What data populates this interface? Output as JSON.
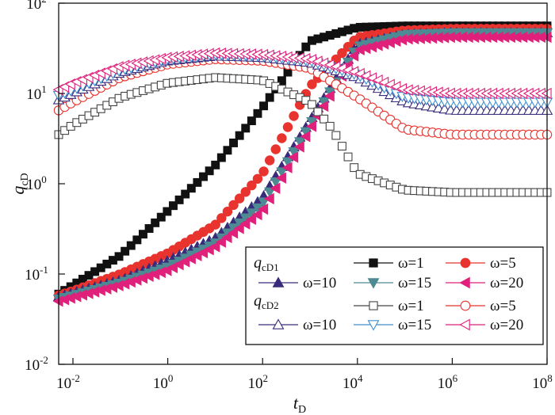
{
  "chart_data": {
    "type": "scatter",
    "title": "",
    "xlabel": "t",
    "xlabel_sub": "D",
    "ylabel": "q",
    "ylabel_sub": "cD",
    "x_scale": "log",
    "y_scale": "log",
    "xlim": [
      0.005,
      100000000
    ],
    "ylim": [
      0.01,
      100
    ],
    "grid": false,
    "legend_position": "bottom-right",
    "x_ticks": [
      {
        "value": 0.01,
        "base": "10",
        "exp": "-2"
      },
      {
        "value": 1,
        "base": "10",
        "exp": "0"
      },
      {
        "value": 100,
        "base": "10",
        "exp": "2"
      },
      {
        "value": 10000,
        "base": "10",
        "exp": "4"
      },
      {
        "value": 1000000,
        "base": "10",
        "exp": "6"
      },
      {
        "value": 100000000,
        "base": "10",
        "exp": "8"
      }
    ],
    "y_ticks": [
      {
        "value": 0.01,
        "base": "10",
        "exp": "-2"
      },
      {
        "value": 0.1,
        "base": "10",
        "exp": "-1"
      },
      {
        "value": 1,
        "base": "10",
        "exp": "0"
      },
      {
        "value": 10,
        "base": "10",
        "exp": "1"
      },
      {
        "value": 100,
        "base": "10",
        "exp": "2"
      }
    ],
    "legend_groups": [
      {
        "label": "q",
        "label_sub": "cD1"
      },
      {
        "label": "q",
        "label_sub": "cD2"
      }
    ],
    "series": [
      {
        "name": "ω=1",
        "group": 0,
        "marker": "square",
        "filled": true,
        "color": "#111111",
        "x": [
          0.005,
          0.01,
          0.1,
          1,
          10,
          100,
          1000,
          10000,
          100000,
          1000000,
          100000000
        ],
        "y": [
          0.06,
          0.075,
          0.16,
          0.5,
          1.6,
          7,
          38,
          54,
          56,
          56,
          56
        ]
      },
      {
        "name": "ω=5",
        "group": 0,
        "marker": "circle",
        "filled": true,
        "color": "#e8332e",
        "x": [
          0.005,
          0.01,
          0.1,
          1,
          10,
          100,
          1000,
          10000,
          100000,
          1000000,
          100000000
        ],
        "y": [
          0.058,
          0.065,
          0.1,
          0.17,
          0.35,
          1.3,
          12,
          42,
          50,
          52,
          52
        ]
      },
      {
        "name": "ω=10",
        "group": 0,
        "marker": "triangle-up",
        "filled": true,
        "color": "#3a2a7a",
        "x": [
          0.005,
          0.01,
          0.1,
          1,
          10,
          100,
          1000,
          10000,
          100000,
          1000000,
          100000000
        ],
        "y": [
          0.056,
          0.062,
          0.085,
          0.14,
          0.25,
          0.7,
          5,
          35,
          45,
          47,
          47
        ]
      },
      {
        "name": "ω=15",
        "group": 0,
        "marker": "triangle-down",
        "filled": true,
        "color": "#4e8a93",
        "x": [
          0.005,
          0.01,
          0.1,
          1,
          10,
          100,
          1000,
          10000,
          100000,
          1000000,
          100000000
        ],
        "y": [
          0.053,
          0.058,
          0.08,
          0.12,
          0.22,
          0.6,
          4.5,
          33,
          45,
          47,
          47
        ]
      },
      {
        "name": "ω=20",
        "group": 0,
        "marker": "triangle-left",
        "filled": true,
        "color": "#e0207a",
        "x": [
          0.005,
          0.01,
          0.1,
          1,
          10,
          100,
          1000,
          10000,
          100000,
          1000000,
          100000000
        ],
        "y": [
          0.05,
          0.055,
          0.075,
          0.11,
          0.2,
          0.5,
          4,
          30,
          40,
          42,
          42
        ]
      },
      {
        "name": "ω=1",
        "group": 1,
        "marker": "square",
        "filled": false,
        "color": "#444444",
        "x": [
          0.005,
          0.01,
          0.1,
          1,
          10,
          100,
          1000,
          3000,
          10000,
          100000,
          1000000,
          100000000
        ],
        "y": [
          3.5,
          4.5,
          9,
          13,
          15,
          14,
          8,
          4,
          1.3,
          0.85,
          0.8,
          0.8
        ]
      },
      {
        "name": "ω=5",
        "group": 1,
        "marker": "circle",
        "filled": false,
        "color": "#e8332e",
        "x": [
          0.005,
          0.01,
          0.1,
          1,
          10,
          100,
          1000,
          10000,
          100000,
          1000000,
          100000000
        ],
        "y": [
          6.5,
          8,
          15,
          21,
          24,
          23,
          19,
          9,
          4,
          3.5,
          3.5
        ]
      },
      {
        "name": "ω=10",
        "group": 1,
        "marker": "triangle-up",
        "filled": false,
        "color": "#3a2a7a",
        "x": [
          0.005,
          0.01,
          0.1,
          1,
          10,
          100,
          1000,
          10000,
          100000,
          1000000,
          100000000
        ],
        "y": [
          8.5,
          10,
          17,
          23,
          26,
          25,
          22,
          15,
          8,
          6.5,
          6.5
        ]
      },
      {
        "name": "ω=15",
        "group": 1,
        "marker": "triangle-down",
        "filled": false,
        "color": "#3f8fd0",
        "x": [
          0.005,
          0.01,
          0.1,
          1,
          10,
          100,
          1000,
          10000,
          100000,
          1000000,
          100000000
        ],
        "y": [
          9.5,
          11,
          18,
          24,
          27,
          26,
          23,
          16,
          9,
          8,
          8
        ]
      },
      {
        "name": "ω=20",
        "group": 1,
        "marker": "triangle-left",
        "filled": false,
        "color": "#e0207a",
        "x": [
          0.005,
          0.01,
          0.1,
          1,
          10,
          100,
          1000,
          10000,
          100000,
          1000000,
          100000000
        ],
        "y": [
          11,
          13,
          20,
          25,
          28,
          27,
          24,
          17,
          11,
          10,
          10
        ]
      }
    ]
  }
}
